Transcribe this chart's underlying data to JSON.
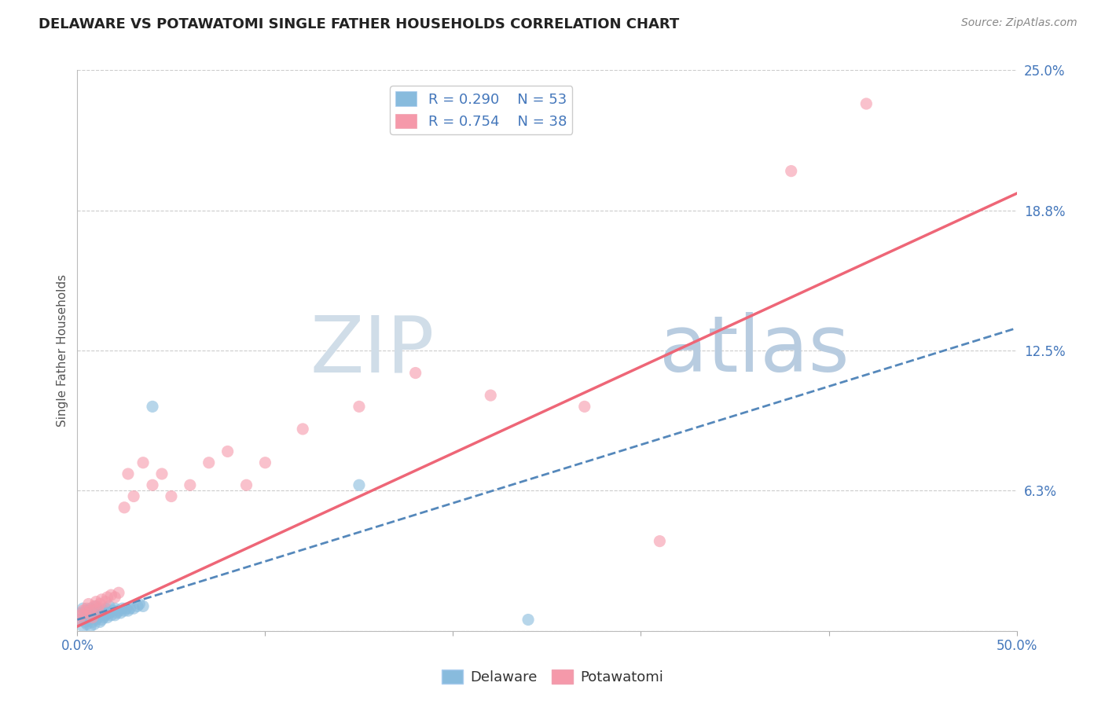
{
  "title": "DELAWARE VS POTAWATOMI SINGLE FATHER HOUSEHOLDS CORRELATION CHART",
  "source": "Source: ZipAtlas.com",
  "ylabel": "Single Father Households",
  "xlim": [
    0,
    0.5
  ],
  "ylim": [
    0,
    0.25
  ],
  "yticks": [
    0.0,
    0.0625,
    0.125,
    0.1875,
    0.25
  ],
  "ytick_labels": [
    "",
    "6.3%",
    "12.5%",
    "18.8%",
    "25.0%"
  ],
  "xtick_positions": [
    0.0,
    0.1,
    0.2,
    0.3,
    0.4,
    0.5
  ],
  "xtick_labels": [
    "0.0%",
    "",
    "",
    "",
    "",
    "50.0%"
  ],
  "delaware_R": 0.29,
  "delaware_N": 53,
  "potawatomi_R": 0.754,
  "potawatomi_N": 38,
  "delaware_color": "#88bbdd",
  "potawatomi_color": "#f599aa",
  "delaware_line_color": "#5588bb",
  "potawatomi_line_color": "#ee6677",
  "background_color": "#ffffff",
  "grid_color": "#cccccc",
  "watermark_ZIP": "ZIP",
  "watermark_atlas": "atlas",
  "watermark_color_ZIP": "#d0dde8",
  "watermark_color_atlas": "#b8cce0",
  "title_color": "#222222",
  "axis_label_color": "#4477bb",
  "delaware_x": [
    0.001,
    0.002,
    0.003,
    0.003,
    0.004,
    0.004,
    0.005,
    0.005,
    0.005,
    0.006,
    0.006,
    0.007,
    0.007,
    0.007,
    0.008,
    0.008,
    0.009,
    0.009,
    0.01,
    0.01,
    0.01,
    0.011,
    0.011,
    0.012,
    0.012,
    0.013,
    0.013,
    0.014,
    0.014,
    0.015,
    0.015,
    0.016,
    0.017,
    0.017,
    0.018,
    0.019,
    0.02,
    0.02,
    0.021,
    0.022,
    0.023,
    0.024,
    0.025,
    0.026,
    0.027,
    0.028,
    0.03,
    0.032,
    0.033,
    0.035,
    0.04,
    0.15,
    0.24
  ],
  "delaware_y": [
    0.005,
    0.008,
    0.002,
    0.01,
    0.004,
    0.006,
    0.003,
    0.007,
    0.009,
    0.005,
    0.008,
    0.002,
    0.006,
    0.01,
    0.004,
    0.007,
    0.003,
    0.009,
    0.005,
    0.008,
    0.011,
    0.006,
    0.009,
    0.004,
    0.007,
    0.005,
    0.008,
    0.006,
    0.009,
    0.007,
    0.01,
    0.006,
    0.008,
    0.011,
    0.007,
    0.009,
    0.007,
    0.01,
    0.008,
    0.009,
    0.008,
    0.01,
    0.009,
    0.01,
    0.009,
    0.01,
    0.01,
    0.011,
    0.012,
    0.011,
    0.1,
    0.065,
    0.005
  ],
  "potawatomi_x": [
    0.001,
    0.002,
    0.003,
    0.004,
    0.005,
    0.006,
    0.007,
    0.008,
    0.009,
    0.01,
    0.011,
    0.012,
    0.013,
    0.015,
    0.016,
    0.018,
    0.02,
    0.022,
    0.025,
    0.027,
    0.03,
    0.035,
    0.04,
    0.045,
    0.05,
    0.06,
    0.07,
    0.08,
    0.09,
    0.1,
    0.12,
    0.15,
    0.18,
    0.22,
    0.27,
    0.31,
    0.38,
    0.42
  ],
  "potawatomi_y": [
    0.005,
    0.007,
    0.009,
    0.008,
    0.01,
    0.012,
    0.009,
    0.006,
    0.011,
    0.013,
    0.01,
    0.012,
    0.014,
    0.013,
    0.015,
    0.016,
    0.015,
    0.017,
    0.055,
    0.07,
    0.06,
    0.075,
    0.065,
    0.07,
    0.06,
    0.065,
    0.075,
    0.08,
    0.065,
    0.075,
    0.09,
    0.1,
    0.115,
    0.105,
    0.1,
    0.04,
    0.205,
    0.235
  ],
  "del_trendline_x0": 0.0,
  "del_trendline_y0": 0.005,
  "del_trendline_x1": 0.5,
  "del_trendline_y1": 0.135,
  "pot_trendline_x0": 0.0,
  "pot_trendline_y0": 0.002,
  "pot_trendline_x1": 0.5,
  "pot_trendline_y1": 0.195
}
